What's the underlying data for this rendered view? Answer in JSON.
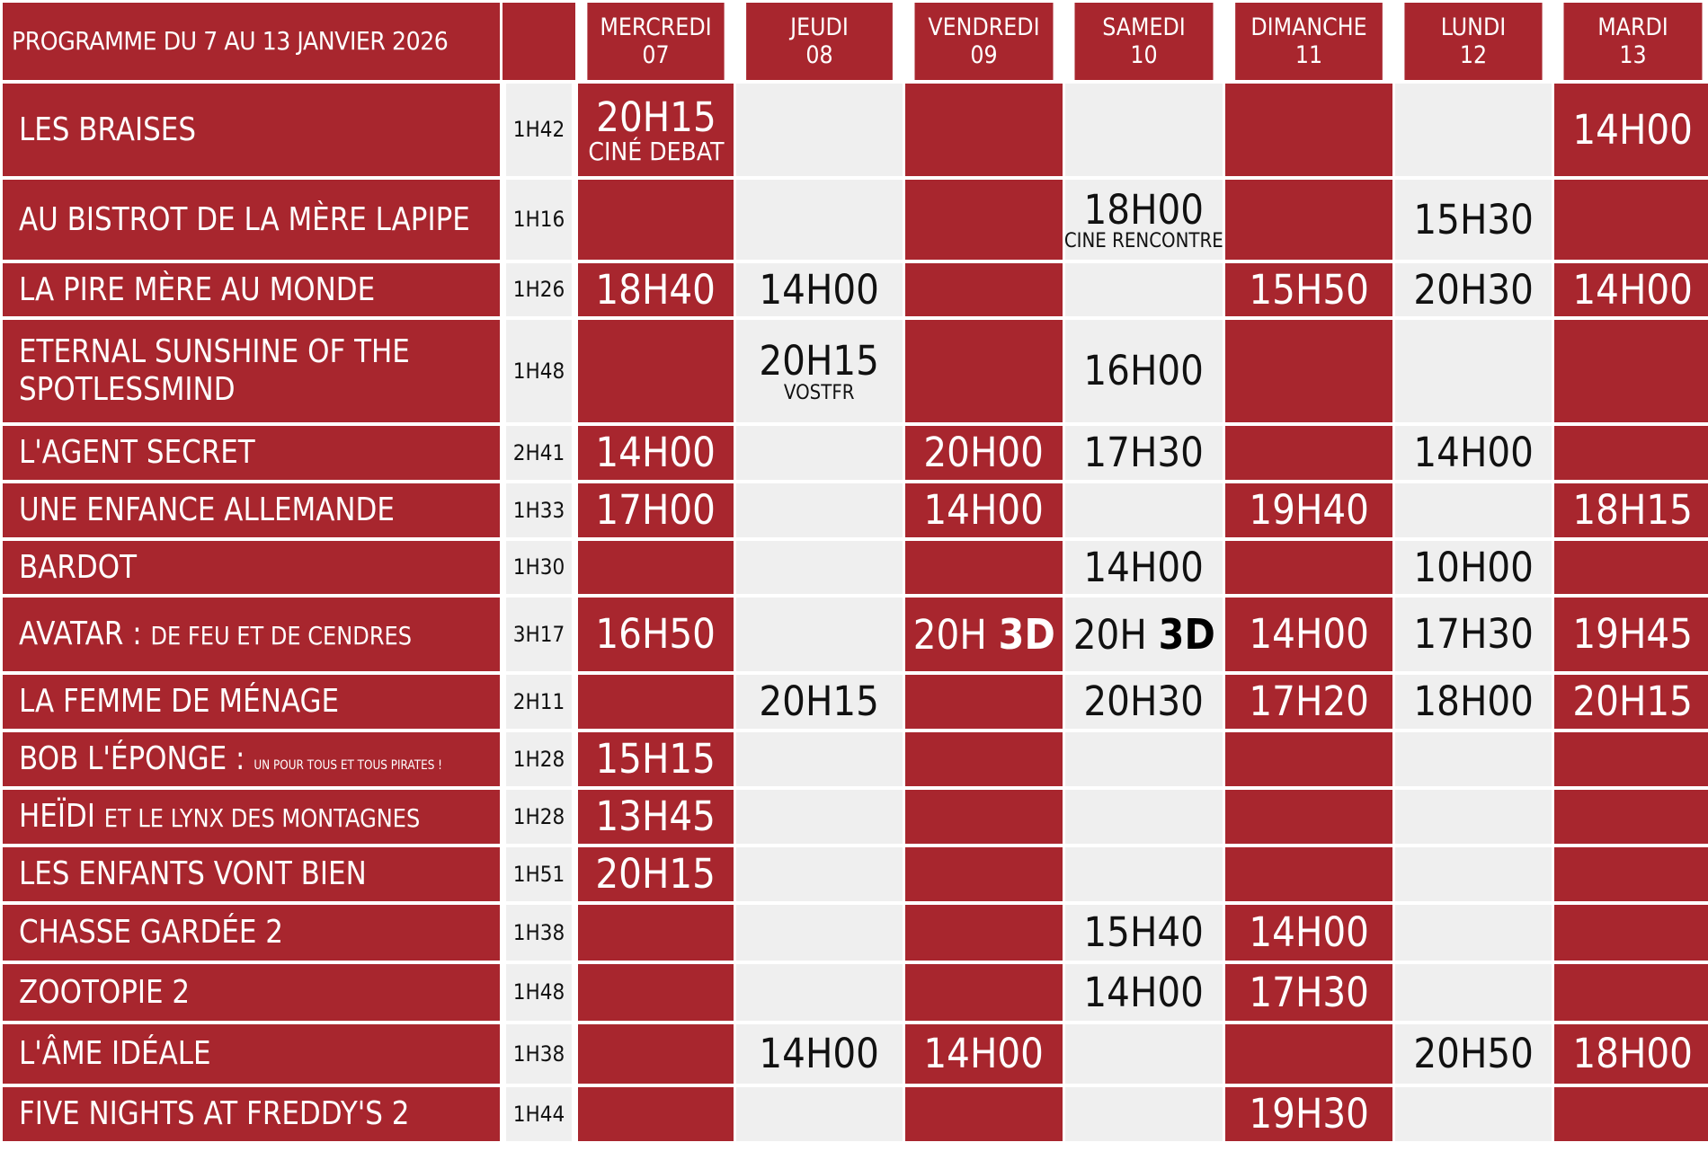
{
  "header": {
    "title": "PROGRAMME DU 7 AU 13 JANVIER 2026",
    "days": [
      {
        "name": "MERCREDI",
        "num": "07"
      },
      {
        "name": "JEUDI",
        "num": "08"
      },
      {
        "name": "VENDREDI",
        "num": "09"
      },
      {
        "name": "SAMEDI",
        "num": "10"
      },
      {
        "name": "DIMANCHE",
        "num": "11"
      },
      {
        "name": "LUNDI",
        "num": "12"
      },
      {
        "name": "MARDI",
        "num": "13"
      }
    ]
  },
  "colors": {
    "red": "#a8262e",
    "grey": "#efefef",
    "white": "#ffffff"
  },
  "movies": [
    {
      "title": "LES BRAISES",
      "duration": "1H42",
      "shows": [
        {
          "time": "20H15",
          "note": "CINÉ DEBAT"
        },
        null,
        null,
        null,
        null,
        null,
        {
          "time": "14H00"
        }
      ]
    },
    {
      "title": "AU BISTROT DE LA MÈRE LAPIPE",
      "duration": "1H16",
      "shows": [
        null,
        null,
        null,
        {
          "time": "18H00",
          "note": "CINE RENCONTRE"
        },
        null,
        {
          "time": "15H30"
        },
        null
      ]
    },
    {
      "title": "LA PIRE MÈRE AU MONDE",
      "duration": "1H26",
      "shows": [
        {
          "time": "18H40"
        },
        {
          "time": "14H00"
        },
        null,
        null,
        {
          "time": "15H50"
        },
        {
          "time": "20H30"
        },
        {
          "time": "14H00"
        }
      ]
    },
    {
      "title": "ETERNAL SUNSHINE OF THE SPOTLESSMIND",
      "duration": "1H48",
      "shows": [
        null,
        {
          "time": "20H15",
          "note": "VOSTFR"
        },
        null,
        {
          "time": "16H00"
        },
        null,
        null,
        null
      ]
    },
    {
      "title": "L'AGENT SECRET",
      "duration": "2H41",
      "shows": [
        {
          "time": "14H00"
        },
        null,
        {
          "time": "20H00"
        },
        {
          "time": "17H30"
        },
        null,
        {
          "time": "14H00"
        },
        null
      ]
    },
    {
      "title": "UNE ENFANCE ALLEMANDE",
      "duration": "1H33",
      "shows": [
        {
          "time": "17H00"
        },
        null,
        {
          "time": "14H00"
        },
        null,
        {
          "time": "19H40"
        },
        null,
        {
          "time": "18H15"
        }
      ]
    },
    {
      "title": "BARDOT",
      "duration": "1H30",
      "shows": [
        null,
        null,
        null,
        {
          "time": "14H00"
        },
        null,
        {
          "time": "10H00"
        },
        null
      ]
    },
    {
      "title_main": "AVATAR : ",
      "title_small": "DE FEU ET DE CENDRES",
      "duration": "3H17",
      "shows": [
        {
          "time": "16H50"
        },
        null,
        {
          "time": "20H",
          "badge": "3D"
        },
        {
          "time": "20H",
          "badge": "3D"
        },
        {
          "time": "14H00"
        },
        {
          "time": "17H30"
        },
        {
          "time": "19H45"
        }
      ]
    },
    {
      "title": "LA FEMME DE MÉNAGE",
      "duration": "2H11",
      "shows": [
        null,
        {
          "time": "20H15"
        },
        null,
        {
          "time": "20H30"
        },
        {
          "time": "17H20"
        },
        {
          "time": "18H00"
        },
        {
          "time": "20H15"
        }
      ]
    },
    {
      "title_main": "BOB L'ÉPONGE : ",
      "title_tiny": "UN POUR TOUS ET TOUS PIRATES !",
      "duration": "1H28",
      "shows": [
        {
          "time": "15H15"
        },
        null,
        null,
        null,
        null,
        null,
        null
      ]
    },
    {
      "title_main": "HEÏDI ",
      "title_small": "ET LE LYNX DES MONTAGNES",
      "duration": "1H28",
      "shows": [
        {
          "time": "13H45"
        },
        null,
        null,
        null,
        null,
        null,
        null
      ]
    },
    {
      "title": "LES ENFANTS VONT BIEN",
      "duration": "1H51",
      "shows": [
        {
          "time": "20H15"
        },
        null,
        null,
        null,
        null,
        null,
        null
      ]
    },
    {
      "title": "CHASSE GARDÉE 2",
      "duration": "1H38",
      "shows": [
        null,
        null,
        null,
        {
          "time": "15H40"
        },
        {
          "time": "14H00"
        },
        null,
        null
      ]
    },
    {
      "title": "ZOOTOPIE 2",
      "duration": "1H48",
      "shows": [
        null,
        null,
        null,
        {
          "time": "14H00"
        },
        {
          "time": "17H30"
        },
        null,
        null
      ]
    },
    {
      "title": "L'ÂME IDÉALE",
      "duration": "1H38",
      "shows": [
        null,
        {
          "time": "14H00"
        },
        {
          "time": "14H00"
        },
        null,
        null,
        {
          "time": "20H50"
        },
        {
          "time": "18H00"
        }
      ]
    },
    {
      "title": "FIVE NIGHTS AT FREDDY'S 2",
      "duration": "1H44",
      "shows": [
        null,
        null,
        null,
        null,
        {
          "time": "19H30"
        },
        null,
        null
      ]
    }
  ]
}
